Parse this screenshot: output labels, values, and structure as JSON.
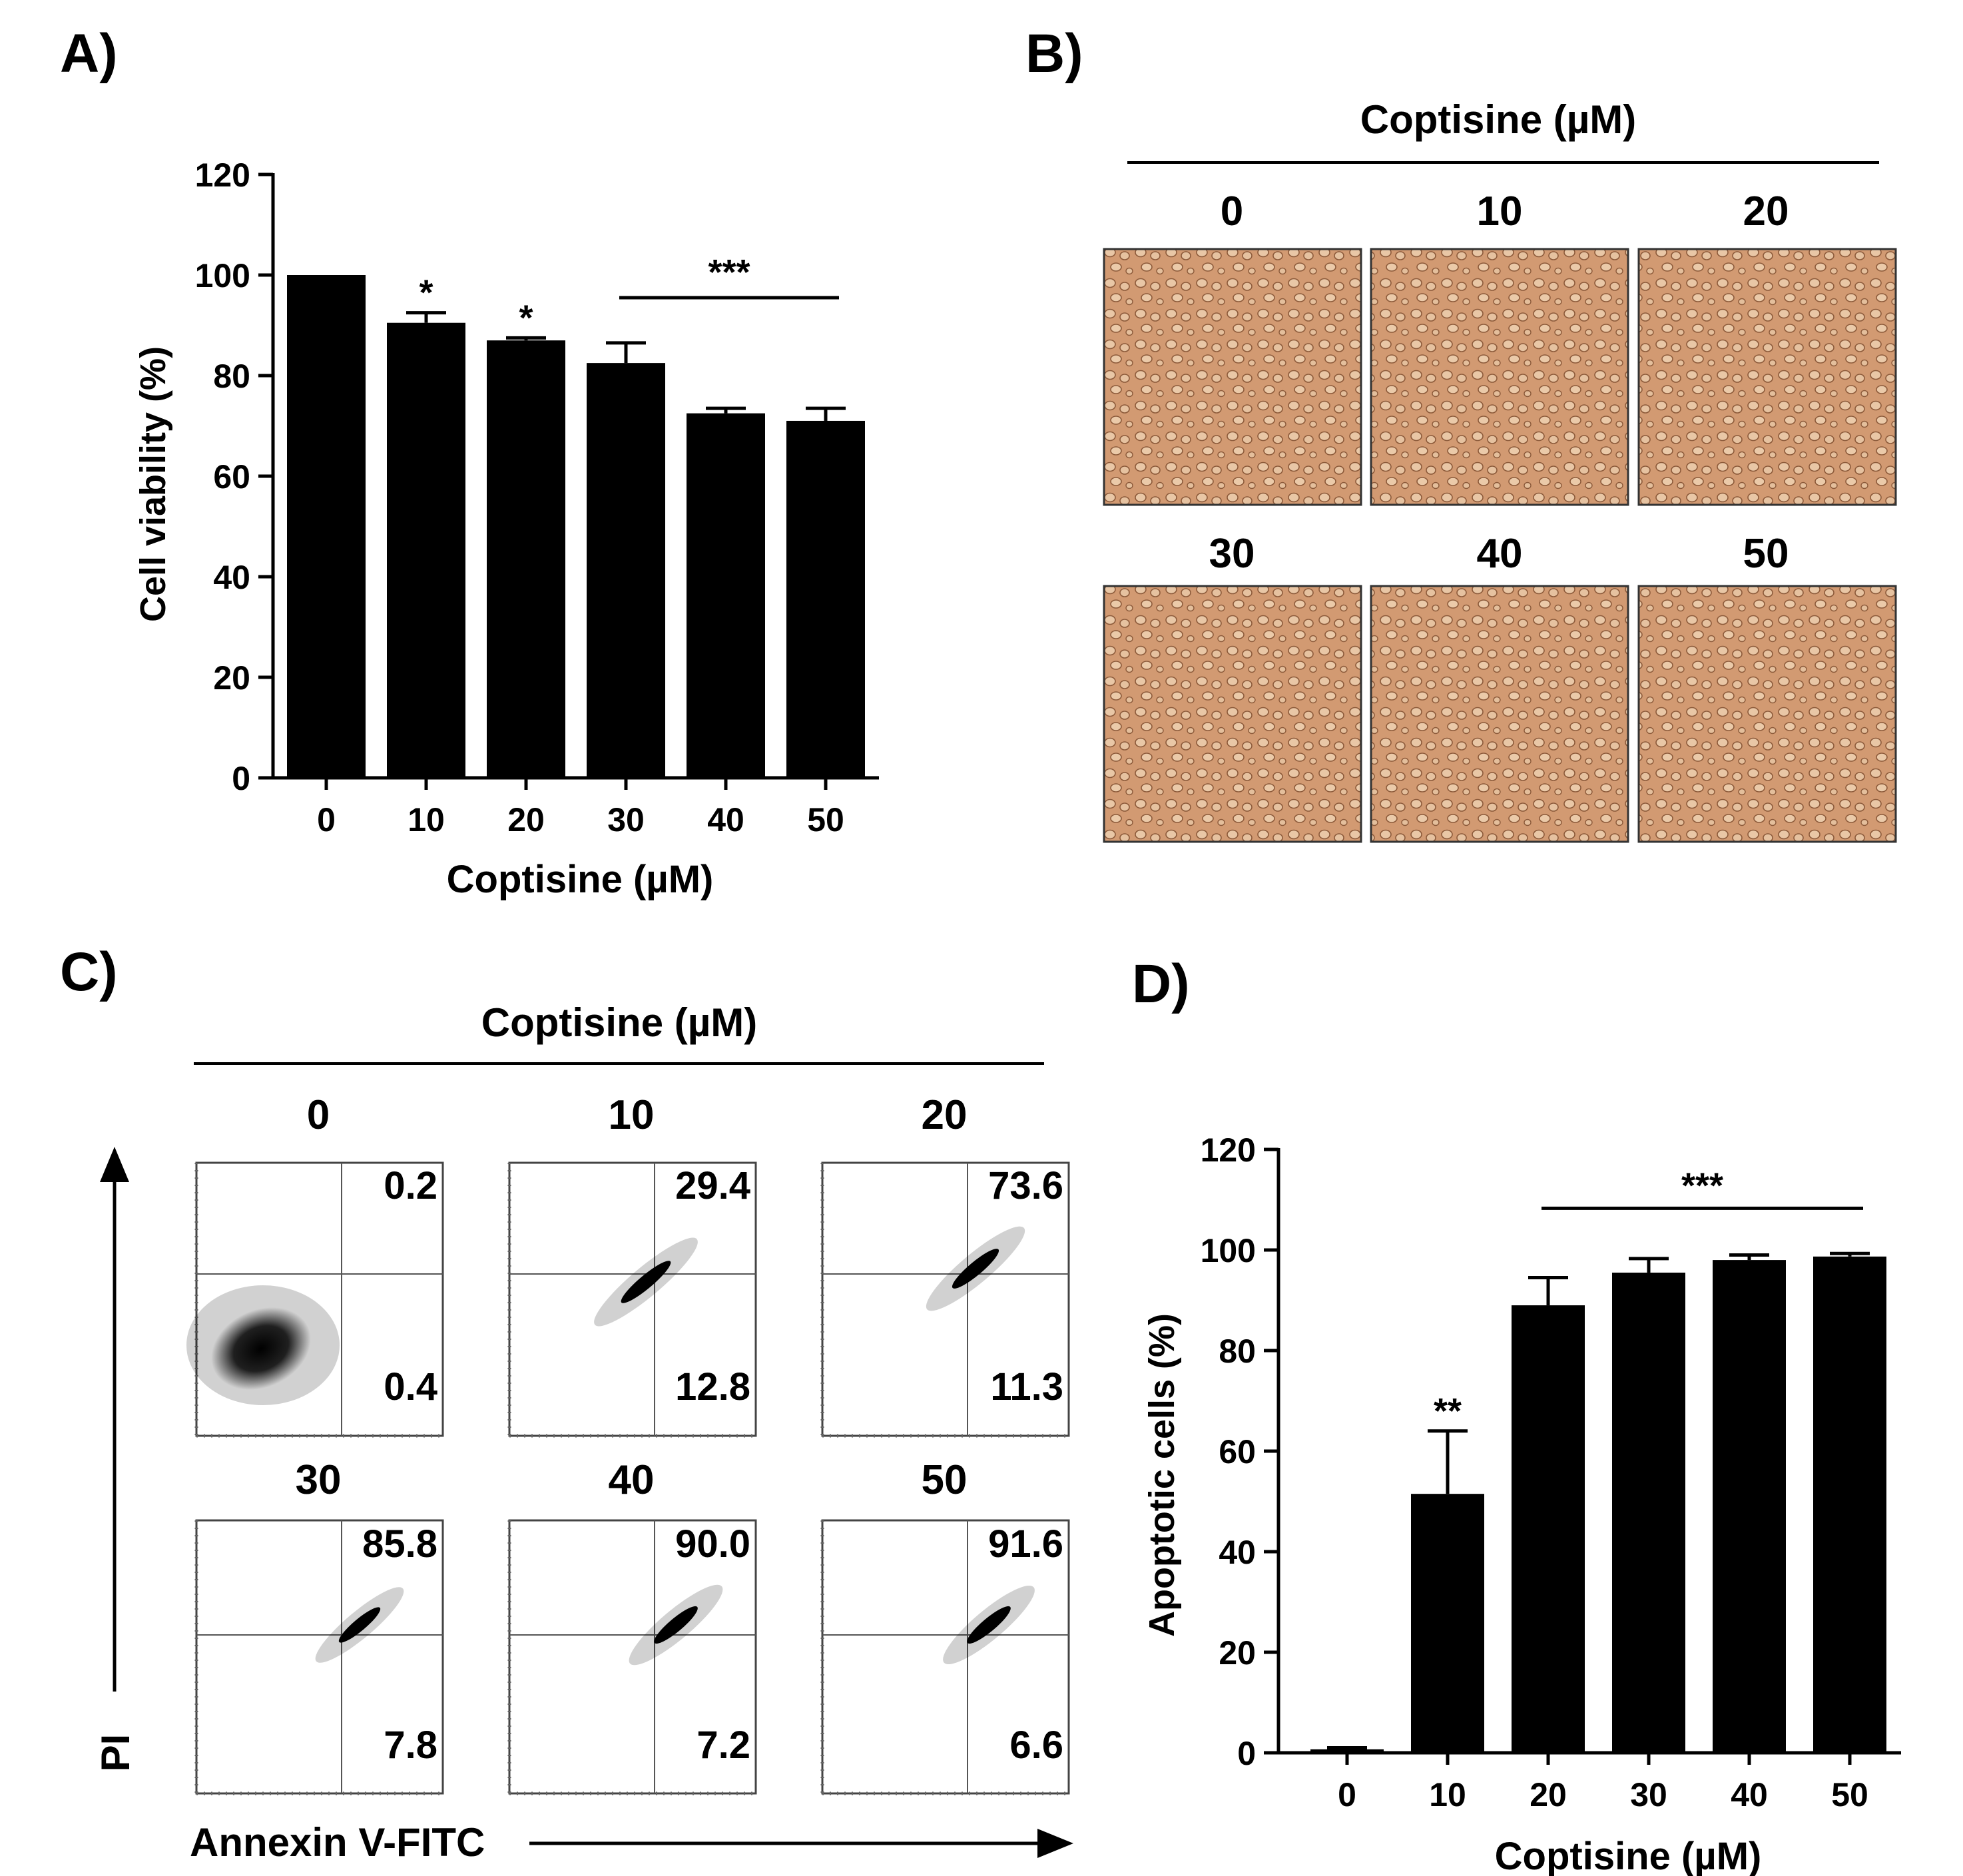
{
  "figure": {
    "accent": "#000000",
    "microscopy_color": "#d29a72",
    "panels": {
      "a": {
        "letter": "A)"
      },
      "b": {
        "letter": "B)",
        "header": "Coptisine (µM)",
        "labels": [
          "0",
          "10",
          "20",
          "30",
          "40",
          "50"
        ]
      },
      "c": {
        "letter": "C)",
        "header": "Coptisine (µM)",
        "labels": [
          "0",
          "10",
          "20",
          "30",
          "40",
          "50"
        ],
        "upper_right": [
          "0.2",
          "29.4",
          "73.6",
          "85.8",
          "90.0",
          "91.6"
        ],
        "lower_right": [
          "0.4",
          "12.8",
          "11.3",
          "7.8",
          "7.2",
          "6.6"
        ],
        "y_axis": "PI",
        "x_axis": "Annexin V-FITC"
      },
      "d": {
        "letter": "D)"
      }
    }
  },
  "chart_data": [
    {
      "panel": "A",
      "type": "bar",
      "categories": [
        "0",
        "10",
        "20",
        "30",
        "40",
        "50"
      ],
      "values": [
        100,
        90.5,
        87,
        82.5,
        72.5,
        71
      ],
      "errors": [
        0,
        2,
        0.5,
        4,
        1,
        2.5
      ],
      "annotations": [
        "",
        "*",
        "*",
        "",
        "",
        ""
      ],
      "bracket": {
        "from": "30",
        "to": "50",
        "label": "***"
      },
      "title": "",
      "xlabel": "Coptisine (µM)",
      "ylabel": "Cell viability (%)",
      "ylim": [
        0,
        120
      ],
      "yticks": [
        "0",
        "20",
        "40",
        "60",
        "80",
        "100",
        "120"
      ]
    },
    {
      "panel": "D",
      "type": "bar",
      "categories": [
        "0",
        "10",
        "20",
        "30",
        "40",
        "50"
      ],
      "values": [
        0.7,
        51.5,
        89,
        95.5,
        98,
        98.7
      ],
      "errors": [
        0.3,
        12.5,
        5.5,
        2.8,
        1,
        0.6
      ],
      "annotations": [
        "",
        "**",
        "",
        "",
        "",
        ""
      ],
      "bracket": {
        "from": "20",
        "to": "50",
        "label": "***"
      },
      "title": "",
      "xlabel": "Coptisine (µM)",
      "ylabel": "Apoptotic cells (%)",
      "ylim": [
        0,
        120
      ],
      "yticks": [
        "0",
        "20",
        "40",
        "60",
        "80",
        "100",
        "120"
      ]
    }
  ]
}
